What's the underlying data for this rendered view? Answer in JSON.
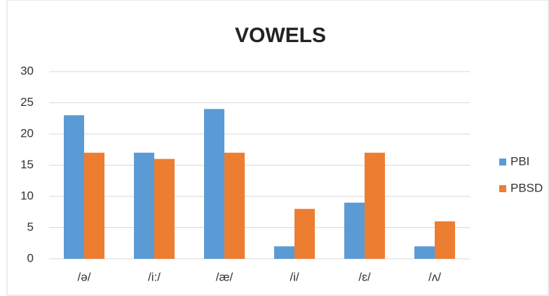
{
  "chart_data": {
    "type": "bar",
    "title": "VOWELS",
    "categories": [
      "/ə/",
      "/i:/",
      "/æ/",
      "/i/",
      "/ɛ/",
      "/ʌ/"
    ],
    "series": [
      {
        "name": "PBI",
        "color": "#5B9BD5",
        "values": [
          23,
          17,
          24,
          2,
          9,
          2
        ]
      },
      {
        "name": "PBSD",
        "color": "#ED7D31",
        "values": [
          17,
          16,
          17,
          8,
          17,
          6
        ]
      }
    ],
    "ylim": [
      0,
      30
    ],
    "yticks": [
      0,
      5,
      10,
      15,
      20,
      25,
      30
    ],
    "grid": true,
    "legend": "right"
  }
}
